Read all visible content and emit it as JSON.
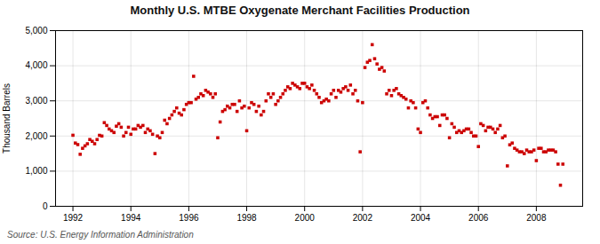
{
  "chart_data": {
    "type": "scatter",
    "title": "Monthly U.S. MTBE Oxygenate Merchant Facilities Production",
    "ylabel": "Thousand Barrels",
    "source": "Source: U.S. Energy Information Administration",
    "color": "#cc0000",
    "marker": "square",
    "grid": true,
    "xlim": [
      1991.4,
      2009.6
    ],
    "xticks": [
      1992,
      1994,
      1996,
      1998,
      2000,
      2002,
      2004,
      2006,
      2008
    ],
    "ylim": [
      0,
      5000
    ],
    "yticks": [
      0,
      {
        "value": 1000,
        "label": "1,000"
      },
      {
        "value": 2000,
        "label": "2,000"
      },
      {
        "value": 3000,
        "label": "3,000"
      },
      {
        "value": 4000,
        "label": "4,000"
      },
      {
        "value": 5000,
        "label": "5,000"
      }
    ],
    "x": [
      1992.0,
      1992.083,
      1992.167,
      1992.25,
      1992.333,
      1992.417,
      1992.5,
      1992.583,
      1992.667,
      1992.75,
      1992.833,
      1992.917,
      1993.0,
      1993.083,
      1993.167,
      1993.25,
      1993.333,
      1993.417,
      1993.5,
      1993.583,
      1993.667,
      1993.75,
      1993.833,
      1993.917,
      1994.0,
      1994.083,
      1994.167,
      1994.25,
      1994.333,
      1994.417,
      1994.5,
      1994.583,
      1994.667,
      1994.75,
      1994.833,
      1994.917,
      1995.0,
      1995.083,
      1995.167,
      1995.25,
      1995.333,
      1995.417,
      1995.5,
      1995.583,
      1995.667,
      1995.75,
      1995.833,
      1995.917,
      1996.0,
      1996.083,
      1996.167,
      1996.25,
      1996.333,
      1996.417,
      1996.5,
      1996.583,
      1996.667,
      1996.75,
      1996.833,
      1996.917,
      1997.0,
      1997.083,
      1997.167,
      1997.25,
      1997.333,
      1997.417,
      1997.5,
      1997.583,
      1997.667,
      1997.75,
      1997.833,
      1997.917,
      1998.0,
      1998.083,
      1998.167,
      1998.25,
      1998.333,
      1998.417,
      1998.5,
      1998.583,
      1998.667,
      1998.75,
      1998.833,
      1998.917,
      1999.0,
      1999.083,
      1999.167,
      1999.25,
      1999.333,
      1999.417,
      1999.5,
      1999.583,
      1999.667,
      1999.75,
      1999.833,
      1999.917,
      2000.0,
      2000.083,
      2000.167,
      2000.25,
      2000.333,
      2000.417,
      2000.5,
      2000.583,
      2000.667,
      2000.75,
      2000.833,
      2000.917,
      2001.0,
      2001.083,
      2001.167,
      2001.25,
      2001.333,
      2001.417,
      2001.5,
      2001.583,
      2001.667,
      2001.75,
      2001.833,
      2001.917,
      2002.0,
      2002.083,
      2002.167,
      2002.25,
      2002.333,
      2002.417,
      2002.5,
      2002.583,
      2002.667,
      2002.75,
      2002.833,
      2002.917,
      2003.0,
      2003.083,
      2003.167,
      2003.25,
      2003.333,
      2003.417,
      2003.5,
      2003.583,
      2003.667,
      2003.75,
      2003.833,
      2003.917,
      2004.0,
      2004.083,
      2004.167,
      2004.25,
      2004.333,
      2004.417,
      2004.5,
      2004.583,
      2004.667,
      2004.75,
      2004.833,
      2004.917,
      2005.0,
      2005.083,
      2005.167,
      2005.25,
      2005.333,
      2005.417,
      2005.5,
      2005.583,
      2005.667,
      2005.75,
      2005.833,
      2005.917,
      2006.0,
      2006.083,
      2006.167,
      2006.25,
      2006.333,
      2006.417,
      2006.5,
      2006.583,
      2006.667,
      2006.75,
      2006.833,
      2006.917,
      2007.0,
      2007.083,
      2007.167,
      2007.25,
      2007.333,
      2007.417,
      2007.5,
      2007.583,
      2007.667,
      2007.75,
      2007.833,
      2007.917,
      2008.0,
      2008.083,
      2008.167,
      2008.25,
      2008.333,
      2008.417,
      2008.5,
      2008.583,
      2008.667,
      2008.75,
      2008.833,
      2008.917
    ],
    "values": [
      2022,
      1800,
      1756,
      1480,
      1650,
      1720,
      1780,
      1900,
      1850,
      1780,
      1900,
      2020,
      2000,
      2380,
      2300,
      2200,
      2150,
      2100,
      2280,
      2350,
      2250,
      2000,
      2100,
      2250,
      2050,
      2200,
      2200,
      2300,
      2250,
      2300,
      2100,
      2200,
      2150,
      2050,
      1500,
      2000,
      1950,
      2100,
      2450,
      2350,
      2500,
      2600,
      2700,
      2800,
      2650,
      2600,
      2750,
      2900,
      2950,
      2950,
      3700,
      3050,
      3100,
      3200,
      3150,
      3300,
      3250,
      3200,
      3100,
      3200,
      1950,
      2400,
      2700,
      2750,
      2850,
      2800,
      2900,
      2900,
      2700,
      3000,
      2800,
      2850,
      2150,
      2800,
      2950,
      2900,
      2700,
      2850,
      2600,
      2700,
      3000,
      3200,
      3100,
      3200,
      2900,
      3000,
      3100,
      3200,
      3300,
      3400,
      3350,
      3500,
      3450,
      3400,
      3350,
      3500,
      3500,
      3400,
      3350,
      3450,
      3300,
      3200,
      3100,
      2950,
      3000,
      3050,
      3000,
      3200,
      3300,
      3100,
      3300,
      3250,
      3350,
      3400,
      3300,
      3450,
      3200,
      3300,
      3000,
      1550,
      2950,
      3950,
      4100,
      4150,
      4600,
      4200,
      4050,
      3900,
      3950,
      3850,
      3200,
      3300,
      3150,
      3300,
      3350,
      3200,
      3150,
      3100,
      3050,
      2800,
      3000,
      2950,
      2800,
      2200,
      2100,
      2950,
      3000,
      2800,
      2600,
      2500,
      2550,
      2550,
      2300,
      2600,
      2600,
      2500,
      1950,
      2350,
      2250,
      2100,
      2150,
      2100,
      2150,
      2200,
      2200,
      2100,
      2000,
      2000,
      1700,
      2350,
      2300,
      2150,
      2250,
      2250,
      2200,
      2100,
      2200,
      2300,
      1950,
      2000,
      1150,
      1750,
      1800,
      1650,
      1600,
      1550,
      1550,
      1500,
      1600,
      1550,
      1550,
      1600,
      1300,
      1650,
      1650,
      1550,
      1550,
      1600,
      1600,
      1600,
      1550,
      1200,
      600,
      1200
    ]
  }
}
